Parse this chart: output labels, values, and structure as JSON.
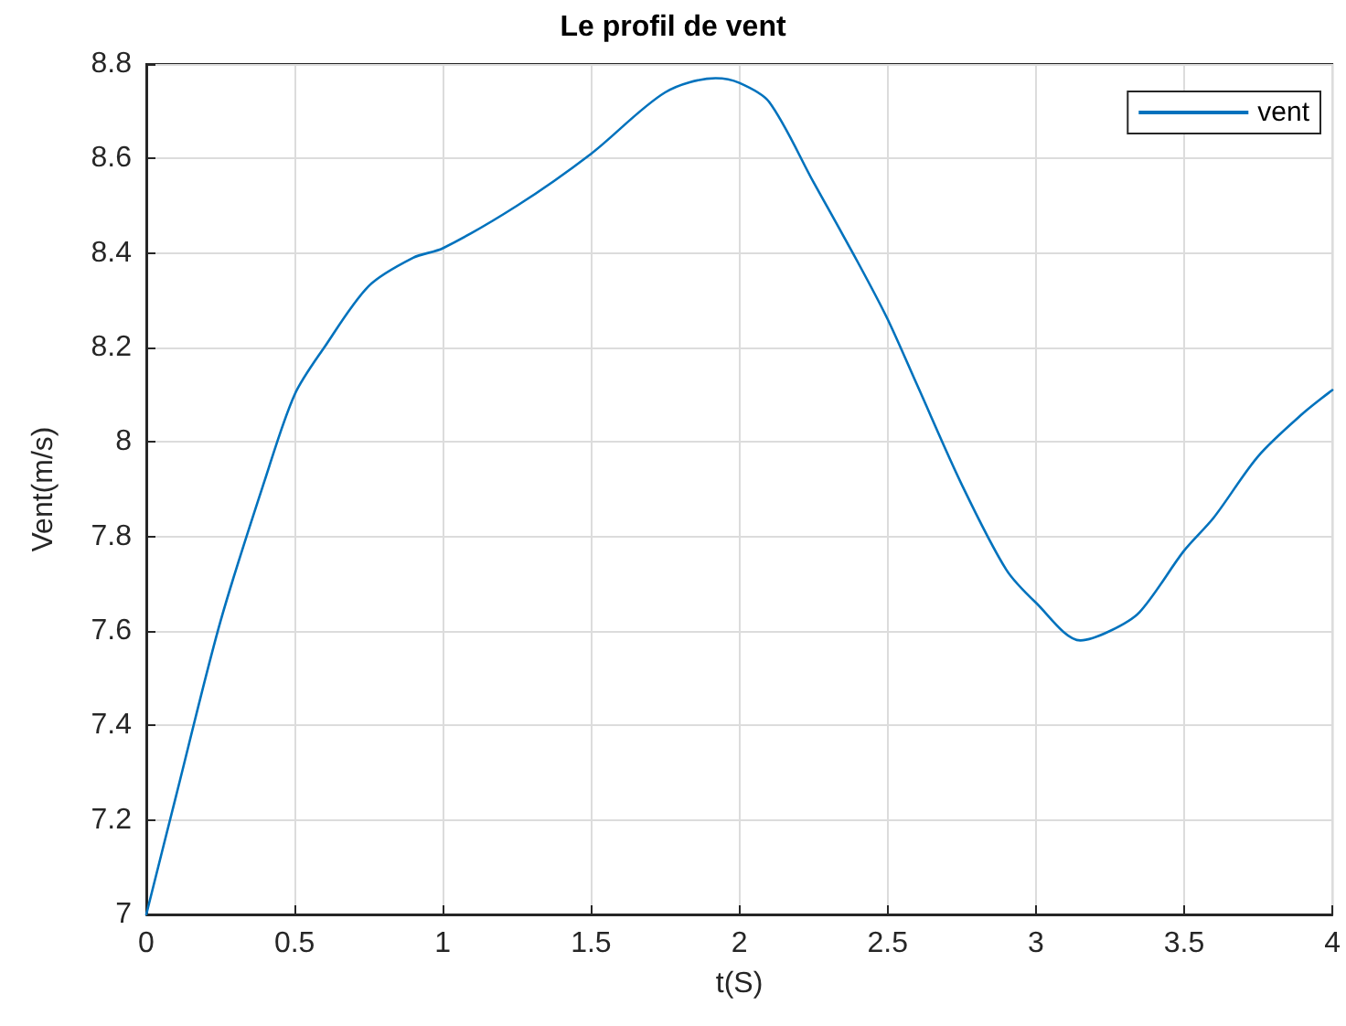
{
  "chart_data": {
    "type": "line",
    "title": "Le profil de vent",
    "xlabel": "t(S)",
    "ylabel": "Vent(m/s)",
    "x": [
      0,
      0.1,
      0.25,
      0.4,
      0.5,
      0.6,
      0.75,
      0.9,
      1,
      1.25,
      1.5,
      1.75,
      1.92,
      2,
      2.1,
      2.25,
      2.4,
      2.5,
      2.6,
      2.75,
      2.9,
      3,
      3.15,
      3.25,
      3.35,
      3.5,
      3.6,
      3.75,
      3.9,
      4
    ],
    "series": [
      {
        "name": "vent",
        "color": "#0072bd",
        "values": [
          7,
          7.25,
          7.62,
          7.92,
          8.1,
          8.2,
          8.33,
          8.39,
          8.41,
          8.5,
          8.61,
          8.74,
          8.77,
          8.76,
          8.72,
          8.55,
          8.38,
          8.26,
          8.12,
          7.91,
          7.73,
          7.66,
          7.58,
          7.6,
          7.64,
          7.77,
          7.84,
          7.97,
          8.06,
          8.11
        ]
      }
    ],
    "xlim": [
      0,
      4
    ],
    "xticks": [
      0,
      0.5,
      1,
      1.5,
      2,
      2.5,
      3,
      3.5,
      4
    ],
    "ylim": [
      7,
      8.8
    ],
    "yticks": [
      7,
      7.2,
      7.4,
      7.6,
      7.8,
      8,
      8.2,
      8.4,
      8.6,
      8.8
    ],
    "grid": true,
    "legend": "top right",
    "marker": "none",
    "line_style": "solid"
  }
}
